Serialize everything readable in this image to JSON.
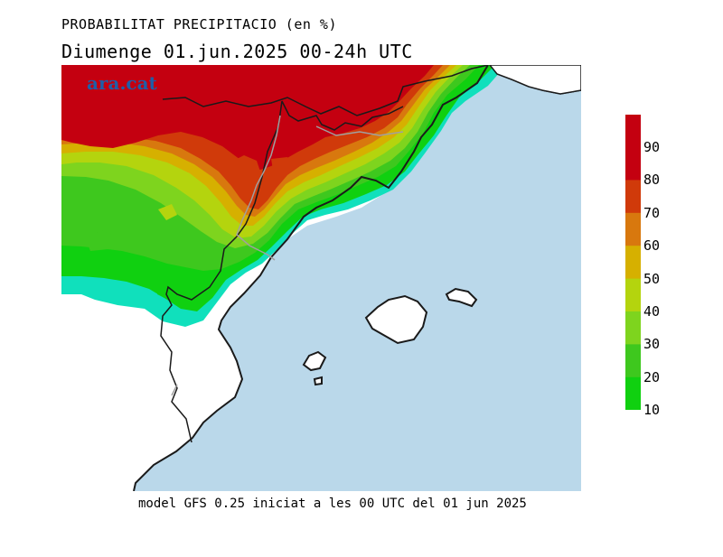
{
  "header": {
    "title": "PROBABILITAT PRECIPITACIO (en %)",
    "subtitle": "Diumenge  01.jun.2025 00-24h UTC"
  },
  "brand": "ara.cat",
  "legend": {
    "ticks": [
      "90",
      "80",
      "70",
      "60",
      "50",
      "40",
      "30",
      "20",
      "10"
    ],
    "colors": [
      "#c40010",
      "#d03a0a",
      "#d8780e",
      "#d6b000",
      "#b4d40e",
      "#7ed41e",
      "#3ec81e",
      "#10d010",
      "#10e0bc"
    ]
  },
  "colors": {
    "sea": "#bad8ea",
    "land_no_data": "#ffffff",
    "coast": "#1a1a1a",
    "border": "#a0a0a0"
  },
  "footer": "model GFS 0.25 iniciat a les 00 UTC del 01 jun 2025"
}
